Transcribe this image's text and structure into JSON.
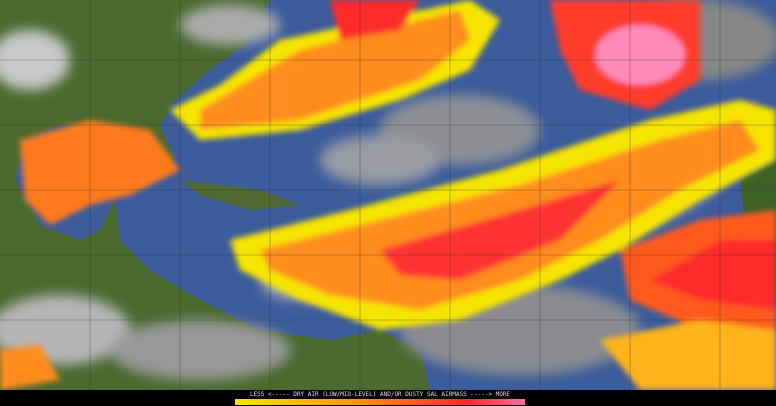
{
  "legend": {
    "caption": "LESS <----- DRY AIR (LOW/MID-LEVEL) AND/OR DUSTY SAL AIRMASS -----> MORE"
  }
}
